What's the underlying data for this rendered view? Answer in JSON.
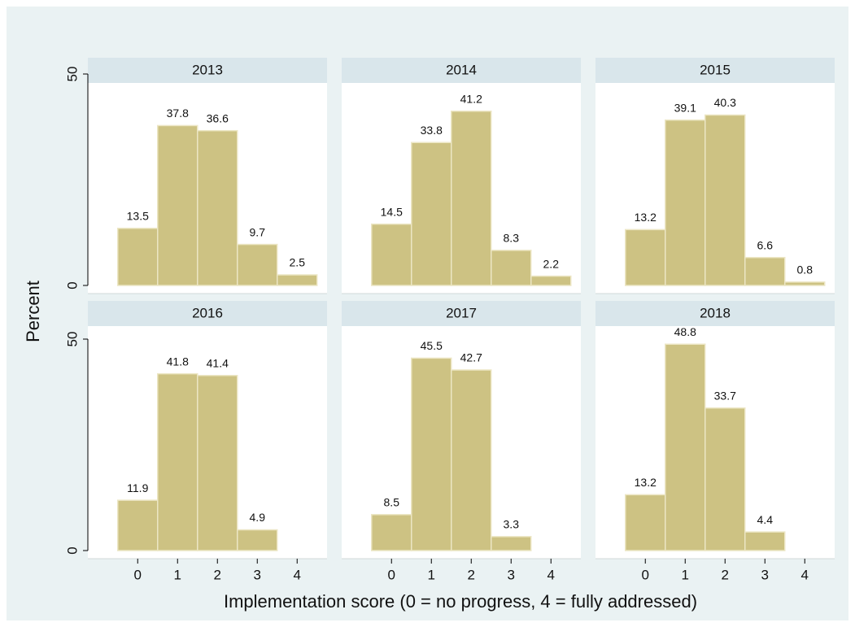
{
  "ylabel": "Percent",
  "xlabel": "Implementation score (0 = no progress, 4 = fully addressed)",
  "chart_data": [
    {
      "type": "bar",
      "title": "2013",
      "x": [
        0,
        1,
        2,
        3,
        4
      ],
      "values": [
        13.5,
        37.8,
        36.6,
        9.7,
        2.5
      ],
      "color": "#cdc283",
      "xlim": [
        -1.25,
        4.75
      ],
      "ylim": [
        0,
        50
      ],
      "yticks": [
        0,
        50
      ]
    },
    {
      "type": "bar",
      "title": "2014",
      "x": [
        0,
        1,
        2,
        3,
        4
      ],
      "values": [
        14.5,
        33.8,
        41.2,
        8.3,
        2.2
      ],
      "color": "#cdc283",
      "xlim": [
        -1.25,
        4.75
      ],
      "ylim": [
        0,
        50
      ]
    },
    {
      "type": "bar",
      "title": "2015",
      "x": [
        0,
        1,
        2,
        3,
        4
      ],
      "values": [
        13.2,
        39.1,
        40.3,
        6.6,
        0.8
      ],
      "color": "#cdc283",
      "xlim": [
        -1.25,
        4.75
      ],
      "ylim": [
        0,
        50
      ]
    },
    {
      "type": "bar",
      "title": "2016",
      "x": [
        0,
        1,
        2,
        3
      ],
      "values": [
        11.9,
        41.8,
        41.4,
        4.9
      ],
      "color": "#cdc283",
      "xlim": [
        -1.25,
        4.75
      ],
      "ylim": [
        0,
        50
      ],
      "yticks": [
        0,
        50
      ],
      "xticks": [
        0,
        1,
        2,
        3,
        4
      ]
    },
    {
      "type": "bar",
      "title": "2017",
      "x": [
        0,
        1,
        2,
        3
      ],
      "values": [
        8.5,
        45.5,
        42.7,
        3.3
      ],
      "color": "#cdc283",
      "xlim": [
        -1.25,
        4.75
      ],
      "ylim": [
        0,
        50
      ],
      "xticks": [
        0,
        1,
        2,
        3,
        4
      ]
    },
    {
      "type": "bar",
      "title": "2018",
      "x": [
        0,
        1,
        2,
        3
      ],
      "values": [
        13.2,
        48.8,
        33.7,
        4.4
      ],
      "color": "#cdc283",
      "xlim": [
        -1.25,
        4.75
      ],
      "ylim": [
        0,
        50
      ],
      "xticks": [
        0,
        1,
        2,
        3,
        4
      ]
    }
  ]
}
